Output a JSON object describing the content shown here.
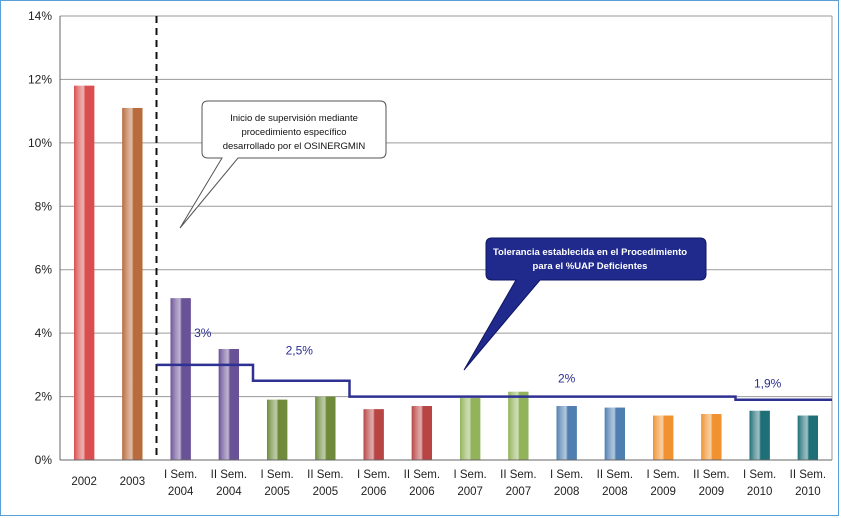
{
  "chart_data": {
    "type": "bar",
    "categories": [
      [
        "2002"
      ],
      [
        "2003"
      ],
      [
        "I Sem.",
        "2004"
      ],
      [
        "II Sem.",
        "2004"
      ],
      [
        "I Sem.",
        "2005"
      ],
      [
        "II Sem.",
        "2005"
      ],
      [
        "I Sem.",
        "2006"
      ],
      [
        "II Sem.",
        "2006"
      ],
      [
        "I Sem.",
        "2007"
      ],
      [
        "II Sem.",
        "2007"
      ],
      [
        "I Sem.",
        "2008"
      ],
      [
        "II Sem.",
        "2008"
      ],
      [
        "I Sem.",
        "2009"
      ],
      [
        "II Sem.",
        "2009"
      ],
      [
        "I Sem.",
        "2010"
      ],
      [
        "II Sem.",
        "2010"
      ]
    ],
    "values": [
      11.8,
      11.1,
      5.1,
      3.5,
      1.9,
      2.0,
      1.6,
      1.7,
      1.95,
      2.15,
      1.7,
      1.65,
      1.4,
      1.45,
      1.55,
      1.4
    ],
    "bar_colors": [
      "#d94f4f",
      "#b86b3c",
      "#6a5297",
      "#6a5297",
      "#6e8a3a",
      "#6e8a3a",
      "#b84444",
      "#b84444",
      "#92b35a",
      "#92b35a",
      "#4f7fb0",
      "#4f7fb0",
      "#f0922f",
      "#f0922f",
      "#1f6f78",
      "#1f6f78"
    ],
    "ylim": [
      0,
      14
    ],
    "yticks": [
      "0%",
      "2%",
      "4%",
      "6%",
      "8%",
      "10%",
      "12%",
      "14%"
    ],
    "grid": true,
    "tolerance_series": {
      "steps": [
        {
          "from": 2,
          "to": 3,
          "value": 3,
          "label": "3%"
        },
        {
          "from": 4,
          "to": 5,
          "value": 2.5,
          "label": "2,5%"
        },
        {
          "from": 6,
          "to": 13,
          "value": 2,
          "label": "2%"
        },
        {
          "from": 14,
          "to": 15,
          "value": 1.9,
          "label": "1,9%"
        }
      ],
      "color": "#2e3192"
    },
    "divider_after_category": 1,
    "annotations": [
      {
        "lines": [
          "Inicio de supervisión mediante",
          "procedimiento específico",
          "desarrollado por el OSINERGMIN"
        ],
        "style": "outline"
      },
      {
        "lines": [
          "Tolerancia establecida en el Procedimiento",
          "para el %UAP Deficientes"
        ],
        "style": "filled",
        "color": "#1f2a8c"
      }
    ]
  }
}
